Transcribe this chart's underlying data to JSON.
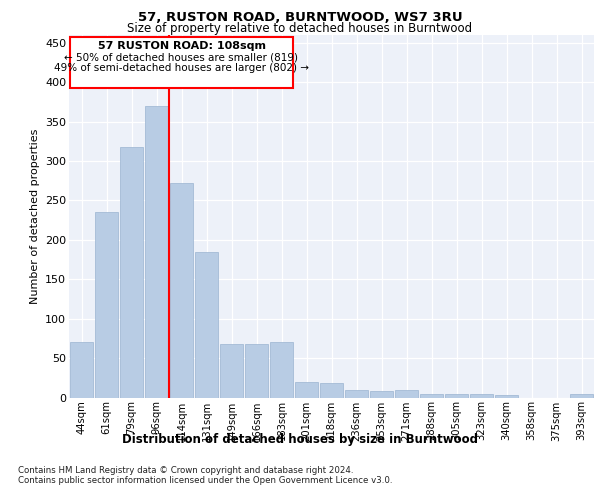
{
  "title": "57, RUSTON ROAD, BURNTWOOD, WS7 3RU",
  "subtitle": "Size of property relative to detached houses in Burntwood",
  "xlabel": "Distribution of detached houses by size in Burntwood",
  "ylabel": "Number of detached properties",
  "categories": [
    "44sqm",
    "61sqm",
    "79sqm",
    "96sqm",
    "114sqm",
    "131sqm",
    "149sqm",
    "166sqm",
    "183sqm",
    "201sqm",
    "218sqm",
    "236sqm",
    "253sqm",
    "271sqm",
    "288sqm",
    "305sqm",
    "323sqm",
    "340sqm",
    "358sqm",
    "375sqm",
    "393sqm"
  ],
  "values": [
    70,
    235,
    318,
    370,
    272,
    185,
    68,
    68,
    70,
    20,
    19,
    10,
    8,
    10,
    5,
    4,
    4,
    3,
    0,
    0,
    4
  ],
  "bar_color": "#b8cce4",
  "bar_edgecolor": "#9ab4d0",
  "red_line_index": 4,
  "annotation_title": "57 RUSTON ROAD: 108sqm",
  "annotation_line1": "← 50% of detached houses are smaller (819)",
  "annotation_line2": "49% of semi-detached houses are larger (802) →",
  "ylim": [
    0,
    460
  ],
  "yticks": [
    0,
    50,
    100,
    150,
    200,
    250,
    300,
    350,
    400,
    450
  ],
  "footer_line1": "Contains HM Land Registry data © Crown copyright and database right 2024.",
  "footer_line2": "Contains public sector information licensed under the Open Government Licence v3.0.",
  "background_color": "#edf1f9"
}
